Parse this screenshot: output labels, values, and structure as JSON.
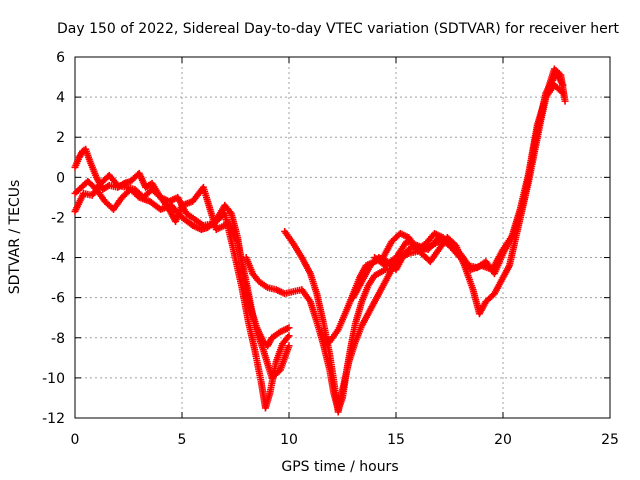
{
  "chart_data": {
    "type": "scatter",
    "title": "Day 150 of 2022, Sidereal Day-to-day VTEC variation (SDTVAR) for receiver hert",
    "xlabel": "GPS time / hours",
    "ylabel": "SDTVAR / TECUs",
    "xlim": [
      0,
      25
    ],
    "ylim": [
      -12,
      6
    ],
    "x_ticks": [
      0,
      5,
      10,
      15,
      20,
      25
    ],
    "x_tick_labels": [
      "0",
      "5",
      "10",
      "15",
      "20",
      "25"
    ],
    "y_ticks": [
      -12,
      -10,
      -8,
      -6,
      -4,
      -2,
      0,
      2,
      4,
      6
    ],
    "y_tick_labels": [
      "-12",
      "-10",
      "-8",
      "-6",
      "-4",
      "-2",
      "0",
      "2",
      "4",
      "6"
    ],
    "grid": true,
    "marker": "plus",
    "color": "#ff0000",
    "series": [
      {
        "x": [
          0.0,
          0.2,
          0.35,
          0.5,
          0.7,
          1.0,
          1.3,
          1.6,
          2.0,
          2.3,
          2.6,
          3.0,
          3.3,
          3.6,
          4.0,
          4.4,
          4.8,
          5.2,
          5.6,
          6.0,
          6.5,
          7.0,
          7.3,
          7.6,
          7.9,
          8.2,
          8.5,
          8.8,
          9.0,
          9.2,
          9.6,
          10.0
        ],
        "y": [
          0.5,
          1.0,
          1.3,
          1.4,
          0.8,
          0.0,
          -0.6,
          -0.4,
          -0.5,
          -0.3,
          -0.2,
          0.2,
          -0.5,
          -0.3,
          -1.0,
          -1.2,
          -1.0,
          -1.8,
          -2.1,
          -2.4,
          -2.3,
          -1.4,
          -1.8,
          -3.0,
          -5.0,
          -6.5,
          -7.5,
          -8.2,
          -8.4,
          -8.0,
          -7.7,
          -7.5
        ]
      },
      {
        "x": [
          0.0,
          0.3,
          0.6,
          1.0,
          1.4,
          1.8,
          2.2,
          2.6,
          3.0,
          3.5,
          4.0,
          4.5,
          5.0,
          5.5,
          5.9,
          6.2,
          6.6,
          7.0,
          7.4,
          7.8,
          8.1,
          8.4,
          8.7,
          8.9,
          9.1,
          9.4,
          9.7,
          10.0
        ],
        "y": [
          -0.8,
          -0.5,
          -0.2,
          -0.6,
          -1.2,
          -1.6,
          -1.0,
          -0.6,
          -1.0,
          -1.2,
          -1.6,
          -1.4,
          -2.0,
          -2.4,
          -2.6,
          -2.5,
          -2.2,
          -1.8,
          -3.6,
          -5.5,
          -7.2,
          -8.6,
          -10.2,
          -11.5,
          -10.8,
          -9.2,
          -8.3,
          -7.9
        ]
      },
      {
        "x": [
          0.0,
          0.4,
          0.8,
          1.2,
          1.6,
          2.0,
          2.4,
          2.8,
          3.2,
          3.6,
          4.0,
          4.4,
          4.7,
          5.0,
          5.5,
          6.0,
          6.6,
          7.2,
          7.6,
          8.0,
          8.4,
          8.8,
          9.2,
          9.6,
          10.0
        ],
        "y": [
          -1.7,
          -0.8,
          -0.9,
          -0.3,
          0.1,
          -0.4,
          -0.5,
          -0.6,
          -1.0,
          -0.6,
          -1.0,
          -1.6,
          -2.2,
          -1.4,
          -1.2,
          -0.5,
          -2.6,
          -2.3,
          -3.2,
          -5.2,
          -7.4,
          -8.6,
          -10.0,
          -9.6,
          -8.4
        ]
      },
      {
        "x": [
          8.0,
          8.3,
          8.6,
          9.0,
          9.4,
          9.8,
          10.2,
          10.6,
          11.0,
          11.3,
          11.6,
          11.9,
          12.1,
          12.3,
          12.5,
          12.7,
          12.9,
          13.1,
          13.4,
          13.7,
          14.0,
          14.5,
          15.0
        ],
        "y": [
          -4.0,
          -4.8,
          -5.2,
          -5.5,
          -5.6,
          -5.8,
          -5.7,
          -5.6,
          -6.2,
          -7.2,
          -8.3,
          -9.6,
          -10.8,
          -11.6,
          -11.0,
          -9.6,
          -8.4,
          -7.3,
          -6.2,
          -5.4,
          -4.9,
          -4.6,
          -4.5
        ]
      },
      {
        "x": [
          9.8,
          10.2,
          10.6,
          11.0,
          11.3,
          11.6,
          11.9,
          12.1,
          12.3,
          12.5,
          12.8,
          13.1,
          13.4,
          13.7,
          14.0,
          14.4,
          14.8,
          15.2,
          15.6,
          16.0,
          16.5,
          17.0
        ],
        "y": [
          -2.7,
          -3.3,
          -4.0,
          -4.8,
          -5.8,
          -7.2,
          -8.8,
          -10.2,
          -11.7,
          -10.6,
          -9.2,
          -8.2,
          -7.4,
          -6.8,
          -6.2,
          -5.4,
          -4.6,
          -4.0,
          -3.8,
          -3.7,
          -3.5,
          -3.2
        ]
      },
      {
        "x": [
          11.5,
          11.9,
          12.3,
          12.7,
          13.0,
          13.3,
          13.6,
          14.0,
          14.4,
          14.8,
          15.2,
          15.6,
          16.0,
          16.4,
          16.8,
          17.2,
          17.6,
          18.0,
          18.4,
          18.8,
          19.2,
          19.6,
          20.0,
          20.4,
          20.8,
          21.2,
          21.6,
          22.0,
          22.4,
          22.8
        ],
        "y": [
          -7.8,
          -8.2,
          -7.6,
          -6.6,
          -5.8,
          -5.0,
          -4.4,
          -4.2,
          -4.0,
          -3.2,
          -2.8,
          -3.0,
          -3.6,
          -3.3,
          -2.8,
          -3.0,
          -3.4,
          -3.8,
          -4.4,
          -4.5,
          -4.2,
          -4.8,
          -3.8,
          -3.0,
          -1.6,
          0.2,
          2.6,
          4.0,
          4.6,
          4.2
        ]
      },
      {
        "x": [
          13.0,
          13.4,
          13.8,
          14.2,
          14.6,
          15.0,
          15.4,
          15.8,
          16.2,
          16.6,
          17.0,
          17.4,
          17.8,
          18.2,
          18.6,
          18.9,
          19.2,
          19.6,
          20.0,
          20.3,
          20.6,
          20.9,
          21.2,
          21.5,
          21.8,
          22.1,
          22.4,
          22.7,
          22.9
        ],
        "y": [
          -6.0,
          -5.2,
          -4.4,
          -4.0,
          -4.2,
          -4.6,
          -3.8,
          -3.4,
          -3.8,
          -4.2,
          -3.6,
          -3.0,
          -3.4,
          -4.4,
          -5.6,
          -6.8,
          -6.2,
          -5.8,
          -5.0,
          -4.4,
          -3.0,
          -1.6,
          -0.2,
          1.4,
          3.0,
          4.4,
          5.4,
          5.1,
          3.8
        ]
      },
      {
        "x": [
          14.0,
          14.5,
          15.0,
          15.5,
          16.0,
          16.5,
          17.0,
          17.5,
          18.0,
          18.5,
          19.0,
          19.5,
          20.0,
          20.5,
          21.0,
          21.5,
          22.0,
          22.5,
          22.8
        ],
        "y": [
          -4.0,
          -4.4,
          -4.0,
          -3.2,
          -3.4,
          -3.6,
          -3.0,
          -3.4,
          -4.0,
          -4.6,
          -4.4,
          -4.6,
          -3.6,
          -2.8,
          -1.0,
          1.8,
          4.2,
          5.2,
          4.6
        ]
      }
    ]
  }
}
